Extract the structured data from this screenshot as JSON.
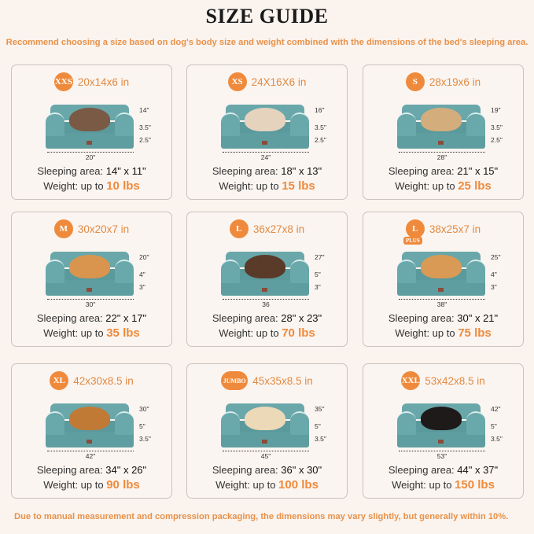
{
  "title": "SIZE GUIDE",
  "subtitle": "Recommend choosing a size based on dog's body size and weight combined with the dimensions of the bed's sleeping area.",
  "footer": "Due to manual measurement and compression packaging, the dimensions may vary slightly, but generally within 10%.",
  "colors": {
    "accent": "#ef8a3c",
    "bed": "#5f9ea0",
    "background": "#faf3ee"
  },
  "labels": {
    "sleeping": "Sleeping area: ",
    "weight": "Weight: up to "
  },
  "cards": [
    {
      "badge": "XXS",
      "dims": "20x14x6 in",
      "depth": "14\"",
      "h1": "3.5\"",
      "h2": "2.5\"",
      "width": "20\"",
      "sleeping": "14\" x 11\"",
      "weight": "10 lbs",
      "pet": "#7a5a45"
    },
    {
      "badge": "XS",
      "dims": "24X16X6 in",
      "depth": "16\"",
      "h1": "3.5\"",
      "h2": "2.5\"",
      "width": "24\"",
      "sleeping": "18\" x 13\"",
      "weight": "15 lbs",
      "pet": "#e6d3bd"
    },
    {
      "badge": "S",
      "dims": "28x19x6 in",
      "depth": "19\"",
      "h1": "3.5\"",
      "h2": "2.5\"",
      "width": "28\"",
      "sleeping": "21\" x 15\"",
      "weight": "25 lbs",
      "pet": "#d4ad7d"
    },
    {
      "badge": "M",
      "dims": "30x20x7 in",
      "depth": "20\"",
      "h1": "4\"",
      "h2": "3\"",
      "width": "30\"",
      "sleeping": "22\" x 17\"",
      "weight": "35 lbs",
      "pet": "#d9954e"
    },
    {
      "badge": "L",
      "dims": "36x27x8 in",
      "depth": "27\"",
      "h1": "5\"",
      "h2": "3\"",
      "width": "36",
      "sleeping": "28\" x 23\"",
      "weight": "70 lbs",
      "pet": "#5a3a28"
    },
    {
      "badge": "L",
      "plus": "PLUS",
      "dims": "38x25x7 in",
      "depth": "25\"",
      "h1": "4\"",
      "h2": "3\"",
      "width": "38\"",
      "sleeping": "30\" x 21\"",
      "weight": "75 lbs",
      "pet": "#d99a55"
    },
    {
      "badge": "XL",
      "dims": "42x30x8.5 in",
      "depth": "30\"",
      "h1": "5\"",
      "h2": "3.5\"",
      "width": "42\"",
      "sleeping": "34\" x 26\"",
      "weight": "90 lbs",
      "pet": "#c07a35"
    },
    {
      "badge": "JUMBO",
      "dims": "45x35x8.5 in",
      "depth": "35\"",
      "h1": "5\"",
      "h2": "3.5\"",
      "width": "45\"",
      "sleeping": "36\" x 30\"",
      "weight": "100 lbs",
      "pet": "#ecd9b8"
    },
    {
      "badge": "XXL",
      "dims": "53x42x8.5 in",
      "depth": "42\"",
      "h1": "5\"",
      "h2": "3.5\"",
      "width": "53\"",
      "sleeping": "44\" x 37\"",
      "weight": "150 lbs",
      "pet": "#1e1a1a"
    }
  ]
}
